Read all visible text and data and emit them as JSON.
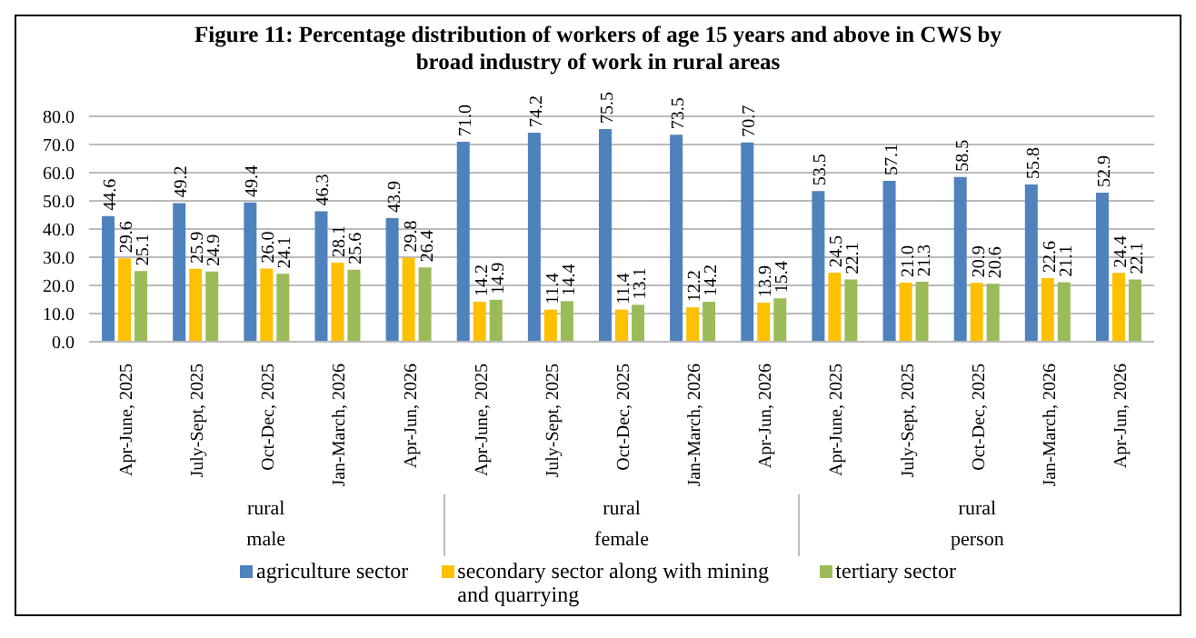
{
  "chart_data": {
    "type": "bar",
    "title": "Figure 11: Percentage distribution  of workers of age 15 years and above  in CWS by broad industry of work in rural areas",
    "categories": [
      "Apr-June, 2025",
      "July-Sept, 2025",
      "Oct-Dec, 2025",
      "Jan-March, 2026",
      "Apr-Jun, 2026",
      "Apr-June, 2025",
      "July-Sept, 2025",
      "Oct-Dec, 2025",
      "Jan-March, 2026",
      "Apr-Jun, 2026",
      "Apr-June, 2025",
      "July-Sept, 2025",
      "Oct-Dec, 2025",
      "Jan-March, 2026",
      "Apr-Jun, 2026"
    ],
    "annotations": [
      "rural",
      "male",
      "rural",
      "female",
      "rural",
      "person"
    ],
    "series": [
      {
        "name": "agriculture sector",
        "color": "#4f81bd",
        "values": [
          44.6,
          49.2,
          49.4,
          46.3,
          43.9,
          71.0,
          74.2,
          75.5,
          73.5,
          70.7,
          53.5,
          57.1,
          58.5,
          55.8,
          52.9
        ],
        "value_labels": [
          "44.6",
          "49.2",
          "49.4",
          "46.3",
          "43.9",
          "71.0",
          "74.2",
          "75.5",
          "73.5",
          "70.7",
          "53.5",
          "57.1",
          "58.5",
          "55.8",
          "52.9"
        ]
      },
      {
        "name": "secondary sector along with mining and quarrying",
        "color": "#ffc000",
        "values": [
          29.6,
          25.9,
          26.0,
          28.1,
          29.8,
          14.2,
          11.4,
          11.4,
          12.2,
          13.9,
          24.5,
          21.0,
          20.9,
          22.6,
          24.4
        ],
        "value_labels": [
          "29.6",
          "25.9",
          "26.0",
          "28.1",
          "29.8",
          "14.2",
          "11.4",
          "11.4",
          "12.2",
          "13.9",
          "24.5",
          "21.0",
          "20.9",
          "22.6",
          "24.4"
        ]
      },
      {
        "name": "tertiary sector",
        "color": "#9bbb59",
        "values": [
          25.1,
          24.9,
          24.1,
          25.6,
          26.4,
          14.9,
          14.4,
          13.1,
          14.2,
          15.4,
          22.1,
          21.3,
          20.6,
          21.1,
          22.1
        ],
        "value_labels": [
          "25.1",
          "24.9",
          "24.1",
          "25.6",
          "26.4",
          "14.9",
          "14.4",
          "13.1",
          "14.2",
          "15.4",
          "22.1",
          "21.3",
          "20.6",
          "21.1",
          "22.1"
        ]
      }
    ],
    "ylim": [
      0,
      80
    ],
    "yticks": [
      {
        "value": 0,
        "label": "0.0"
      },
      {
        "value": 10,
        "label": "10.0"
      },
      {
        "value": 20,
        "label": "20.0"
      },
      {
        "value": 30,
        "label": "30.0"
      },
      {
        "value": 40,
        "label": "40.0"
      },
      {
        "value": 50,
        "label": "50.0"
      },
      {
        "value": 60,
        "label": "60.0"
      },
      {
        "value": 70,
        "label": "70.0"
      },
      {
        "value": 80,
        "label": "80.0"
      }
    ],
    "grid": "y",
    "legend": "bottom"
  }
}
